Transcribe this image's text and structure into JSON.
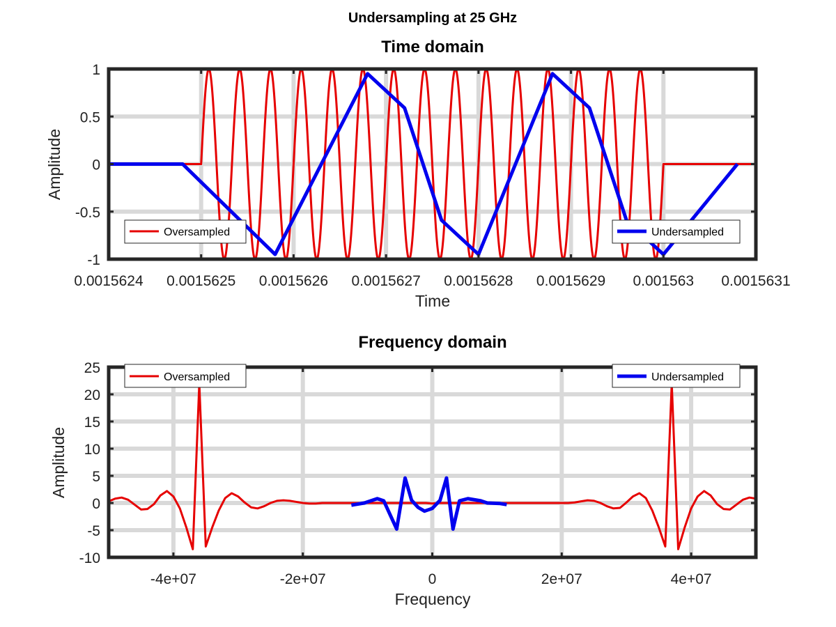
{
  "figure": {
    "suptitle": "Undersampling at 25 GHz"
  },
  "chart_data": [
    {
      "type": "line",
      "title": "Time domain",
      "xlabel": "Time",
      "ylabel": "Amplitude",
      "xlim": [
        0.0015624,
        0.0015631
      ],
      "ylim": [
        -1,
        1
      ],
      "grid": true,
      "xticks": [
        0.0015624,
        0.0015625,
        0.0015626,
        0.0015627,
        0.0015628,
        0.0015629,
        0.001563,
        0.0015631
      ],
      "xticklabels": [
        "0.0015624",
        "0.0015625",
        "0.0015626",
        "0.0015627",
        "0.0015628",
        "0.0015629",
        "0.001563",
        "0.0015631"
      ],
      "yticks": [
        -1,
        -0.5,
        0,
        0.5,
        1
      ],
      "yticklabels": [
        "-1",
        "-0.5",
        "0",
        "0.5",
        "1"
      ],
      "series": [
        {
          "name": "Oversampled",
          "color": "#e60000",
          "kind": "sine_burst",
          "baseline_before": [
            0.0015624,
            0.0015625
          ],
          "burst": [
            0.0015625,
            0.001563
          ],
          "cycles": 15,
          "baseline_after": [
            0.001563,
            0.0015631
          ],
          "legend": "bottom-left"
        },
        {
          "name": "Undersampled",
          "color": "#0000ee",
          "x": [
            0.0015624,
            0.00156248,
            0.00156258,
            0.00156268,
            0.00156272,
            0.00156276,
            0.0015628,
            0.00156288,
            0.00156292,
            0.00156296,
            0.001563,
            0.00156308
          ],
          "y": [
            0,
            0,
            -0.95,
            0.95,
            0.59,
            -0.59,
            -0.95,
            0.95,
            0.59,
            -0.59,
            -0.95,
            0
          ],
          "legend": "bottom-right"
        }
      ]
    },
    {
      "type": "line",
      "title": "Frequency domain",
      "xlabel": "Frequency",
      "ylabel": "Amplitude",
      "xlim": [
        -50000000,
        50000000
      ],
      "ylim": [
        -10,
        25
      ],
      "grid": true,
      "xticks": [
        -40000000,
        -20000000,
        0,
        20000000,
        40000000
      ],
      "xticklabels": [
        "-4e+07",
        "-2e+07",
        "0",
        "2e+07",
        "4e+07"
      ],
      "yticks": [
        -10,
        -5,
        0,
        5,
        10,
        15,
        20,
        25
      ],
      "yticklabels": [
        "-10",
        "-5",
        "0",
        "5",
        "10",
        "15",
        "20",
        "25"
      ],
      "series": [
        {
          "name": "Oversampled",
          "color": "#e60000",
          "x": [
            -50000000,
            -49000000,
            -48000000,
            -47000000,
            -46000000,
            -45000000,
            -44000000,
            -43000000,
            -42000000,
            -41000000,
            -40000000,
            -39000000,
            -38000000,
            -37000000,
            -36000000,
            -35000000,
            -34000000,
            -33000000,
            -32000000,
            -31000000,
            -30000000,
            -29000000,
            -28000000,
            -27000000,
            -26000000,
            -25000000,
            -24000000,
            -23000000,
            -22000000,
            -21000000,
            -20000000,
            -19000000,
            -18000000,
            -17000000,
            -16000000,
            -15000000,
            -14000000,
            -13000000,
            -12000000,
            -11000000,
            -10000000,
            -9000000,
            -8000000,
            -7000000,
            -6000000,
            -5000000,
            -4000000,
            -3000000,
            -2000000,
            -1000000,
            0,
            1000000,
            2000000,
            3000000,
            4000000,
            5000000,
            6000000,
            7000000,
            8000000,
            9000000,
            10000000,
            11000000,
            12000000,
            13000000,
            14000000,
            15000000,
            16000000,
            17000000,
            18000000,
            19000000,
            20000000,
            21000000,
            22000000,
            23000000,
            24000000,
            25000000,
            26000000,
            27000000,
            28000000,
            29000000,
            30000000,
            31000000,
            32000000,
            33000000,
            34000000,
            35000000,
            36000000,
            37000000,
            38000000,
            39000000,
            40000000,
            41000000,
            42000000,
            43000000,
            44000000,
            45000000,
            46000000,
            47000000,
            48000000,
            49000000,
            50000000
          ],
          "y": [
            0.3,
            0.8,
            1.0,
            0.6,
            -0.3,
            -1.2,
            -1.1,
            -0.2,
            1.4,
            2.2,
            1.2,
            -1.0,
            -4.5,
            -8.5,
            22.0,
            -8.0,
            -4.5,
            -1.4,
            0.9,
            1.8,
            1.2,
            0.1,
            -0.8,
            -1.0,
            -0.6,
            0.0,
            0.4,
            0.5,
            0.4,
            0.2,
            0.0,
            -0.1,
            -0.1,
            0.0,
            0.0,
            0.0,
            0.0,
            0.0,
            0.0,
            0.0,
            0.0,
            0.0,
            0.0,
            0.0,
            0.0,
            0.0,
            0.0,
            0.0,
            0.0,
            0.0,
            -0.1,
            0.0,
            0.0,
            0.0,
            0.0,
            0.0,
            0.0,
            0.0,
            0.0,
            0.0,
            0.0,
            0.0,
            0.0,
            0.0,
            0.0,
            0.0,
            0.0,
            0.0,
            0.0,
            0.0,
            0.0,
            0.0,
            0.1,
            0.3,
            0.5,
            0.4,
            0.0,
            -0.6,
            -1.0,
            -0.9,
            0.1,
            1.2,
            1.8,
            0.9,
            -1.4,
            -4.5,
            -8.0,
            22.0,
            -8.5,
            -4.5,
            -1.0,
            1.2,
            2.2,
            1.4,
            -0.2,
            -1.1,
            -1.2,
            -0.3,
            0.6,
            1.0,
            0.8
          ],
          "legend": "top-left"
        },
        {
          "name": "Undersampled",
          "color": "#0000ee",
          "x": [
            -12500000,
            -10500000,
            -8500000,
            -7500000,
            -5500000,
            -4200000,
            -3200000,
            -2200000,
            -1200000,
            0,
            1200000,
            2200000,
            3200000,
            4200000,
            5500000,
            7500000,
            8500000,
            10500000,
            11500000
          ],
          "y": [
            -0.4,
            0.0,
            0.8,
            0.4,
            -4.8,
            4.6,
            0.5,
            -0.8,
            -1.5,
            -1.0,
            0.5,
            4.6,
            -4.8,
            0.4,
            0.8,
            0.4,
            0.0,
            -0.1,
            -0.3
          ],
          "legend": "top-right"
        }
      ]
    }
  ]
}
